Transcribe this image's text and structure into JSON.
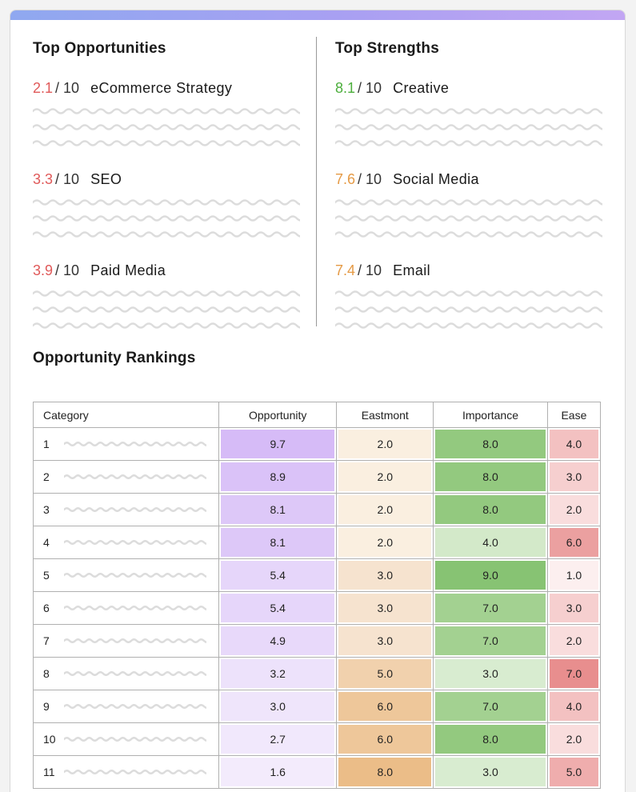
{
  "top_opportunities": {
    "title": "Top Opportunities",
    "items": [
      {
        "score": "2.1",
        "denominator": "/ 10",
        "label": "eCommerce Strategy",
        "color": "#e05a5a"
      },
      {
        "score": "3.3",
        "denominator": "/ 10",
        "label": "SEO",
        "color": "#e05a5a"
      },
      {
        "score": "3.9",
        "denominator": "/ 10",
        "label": "Paid Media",
        "color": "#e05a5a"
      }
    ]
  },
  "top_strengths": {
    "title": "Top Strengths",
    "items": [
      {
        "score": "8.1",
        "denominator": "/ 10",
        "label": "Creative",
        "color": "#4cae3c"
      },
      {
        "score": "7.6",
        "denominator": "/ 10",
        "label": "Social Media",
        "color": "#e59a45"
      },
      {
        "score": "7.4",
        "denominator": "/ 10",
        "label": "Email",
        "color": "#e59a45"
      }
    ]
  },
  "rankings": {
    "title": "Opportunity Rankings",
    "columns": [
      "Category",
      "Opportunity",
      "Eastmont",
      "Importance",
      "Ease"
    ],
    "rows": [
      {
        "cat": "1",
        "cells": [
          {
            "v": "9.7",
            "c": "#d6bbf7"
          },
          {
            "v": "2.0",
            "c": "#faefe0"
          },
          {
            "v": "8.0",
            "c": "#93c97f"
          },
          {
            "v": "4.0",
            "c": "#f3c1c1"
          }
        ]
      },
      {
        "cat": "2",
        "cells": [
          {
            "v": "8.9",
            "c": "#dac2f8"
          },
          {
            "v": "2.0",
            "c": "#faefe0"
          },
          {
            "v": "8.0",
            "c": "#93c97f"
          },
          {
            "v": "3.0",
            "c": "#f6cfcf"
          }
        ]
      },
      {
        "cat": "3",
        "cells": [
          {
            "v": "8.1",
            "c": "#ddc8f8"
          },
          {
            "v": "2.0",
            "c": "#faefe0"
          },
          {
            "v": "8.0",
            "c": "#93c97f"
          },
          {
            "v": "2.0",
            "c": "#f9dddd"
          }
        ]
      },
      {
        "cat": "4",
        "cells": [
          {
            "v": "8.1",
            "c": "#ddc8f8"
          },
          {
            "v": "2.0",
            "c": "#faefe0"
          },
          {
            "v": "4.0",
            "c": "#d3e9c9"
          },
          {
            "v": "6.0",
            "c": "#eba0a0"
          }
        ]
      },
      {
        "cat": "5",
        "cells": [
          {
            "v": "5.4",
            "c": "#e6d6fa"
          },
          {
            "v": "3.0",
            "c": "#f6e3cf"
          },
          {
            "v": "9.0",
            "c": "#87c373"
          },
          {
            "v": "1.0",
            "c": "#fcefef"
          }
        ]
      },
      {
        "cat": "6",
        "cells": [
          {
            "v": "5.4",
            "c": "#e6d6fa"
          },
          {
            "v": "3.0",
            "c": "#f6e3cf"
          },
          {
            "v": "7.0",
            "c": "#a3d191"
          },
          {
            "v": "3.0",
            "c": "#f6cfcf"
          }
        ]
      },
      {
        "cat": "7",
        "cells": [
          {
            "v": "4.9",
            "c": "#e8d9fa"
          },
          {
            "v": "3.0",
            "c": "#f6e3cf"
          },
          {
            "v": "7.0",
            "c": "#a3d191"
          },
          {
            "v": "2.0",
            "c": "#f9dddd"
          }
        ]
      },
      {
        "cat": "8",
        "cells": [
          {
            "v": "3.2",
            "c": "#ede2fb"
          },
          {
            "v": "5.0",
            "c": "#f1d1ad"
          },
          {
            "v": "3.0",
            "c": "#d8ecd0"
          },
          {
            "v": "7.0",
            "c": "#e88e8e"
          }
        ]
      },
      {
        "cat": "9",
        "cells": [
          {
            "v": "3.0",
            "c": "#efe5fb"
          },
          {
            "v": "6.0",
            "c": "#eec79a"
          },
          {
            "v": "7.0",
            "c": "#a3d191"
          },
          {
            "v": "4.0",
            "c": "#f3c1c1"
          }
        ]
      },
      {
        "cat": "10",
        "cells": [
          {
            "v": "2.7",
            "c": "#f1e8fc"
          },
          {
            "v": "6.0",
            "c": "#eec79a"
          },
          {
            "v": "8.0",
            "c": "#93c97f"
          },
          {
            "v": "2.0",
            "c": "#f9dddd"
          }
        ]
      },
      {
        "cat": "11",
        "cells": [
          {
            "v": "1.6",
            "c": "#f3ebfc"
          },
          {
            "v": "8.0",
            "c": "#ebbd88"
          },
          {
            "v": "3.0",
            "c": "#d8ecd0"
          },
          {
            "v": "5.0",
            "c": "#efadad"
          }
        ]
      }
    ]
  },
  "colors": {
    "header_gradient_start": "#8fa8f0",
    "header_gradient_end": "#c2a6f3",
    "squiggle": "#dcdcdc"
  }
}
